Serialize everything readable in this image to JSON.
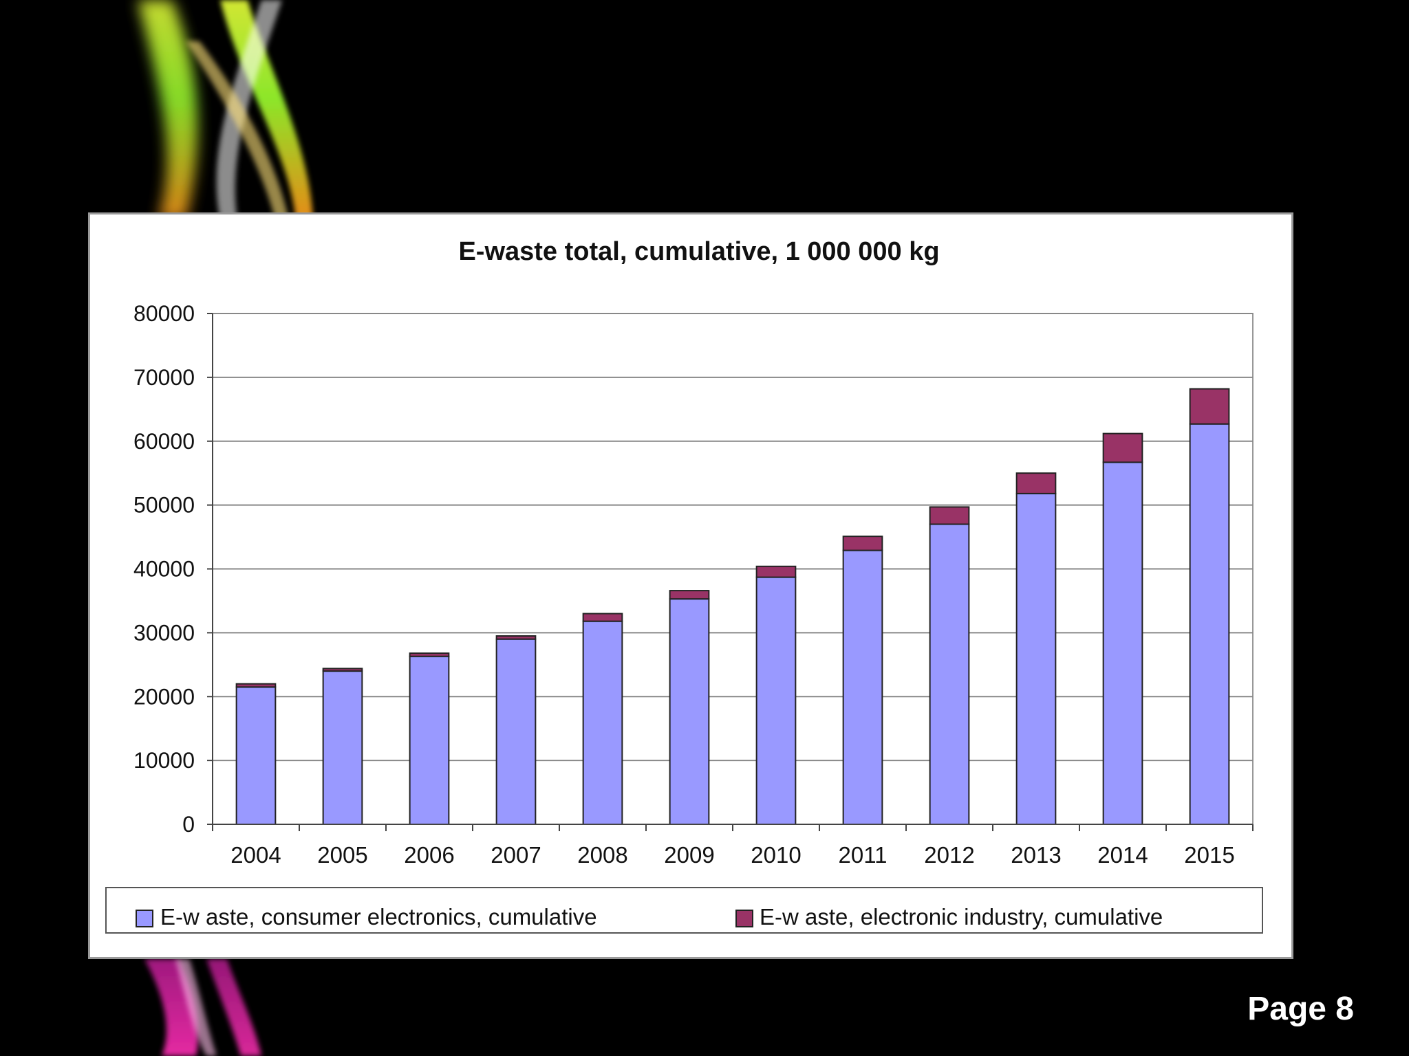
{
  "slide": {
    "page_label": "Page 8",
    "background_color": "#000000",
    "ribbon_colors": [
      "#e8ff3a",
      "#9cff2e",
      "#ff9a1a",
      "#ff2fb4",
      "#b01c8c"
    ]
  },
  "chart_data": {
    "type": "bar",
    "stacked": true,
    "title": "E-waste total, cumulative, 1 000 000 kg",
    "xlabel": "",
    "ylabel": "",
    "categories": [
      "2004",
      "2005",
      "2006",
      "2007",
      "2008",
      "2009",
      "2010",
      "2011",
      "2012",
      "2013",
      "2014",
      "2015"
    ],
    "series": [
      {
        "name": "E-w aste, consumer electronics, cumulative",
        "color": "#9999ff",
        "values": [
          21500,
          24000,
          26300,
          29000,
          31800,
          35300,
          38700,
          42900,
          47000,
          51800,
          56700,
          62700
        ]
      },
      {
        "name": "E-w aste, electronic industry, cumulative",
        "color": "#993366",
        "values": [
          500,
          400,
          500,
          500,
          1200,
          1300,
          1700,
          2200,
          2700,
          3200,
          4500,
          5500
        ]
      }
    ],
    "ylim": [
      0,
      80000
    ],
    "yticks": [
      "0",
      "10000",
      "20000",
      "30000",
      "40000",
      "50000",
      "60000",
      "70000",
      "80000"
    ],
    "grid": true,
    "legend_position": "bottom"
  }
}
